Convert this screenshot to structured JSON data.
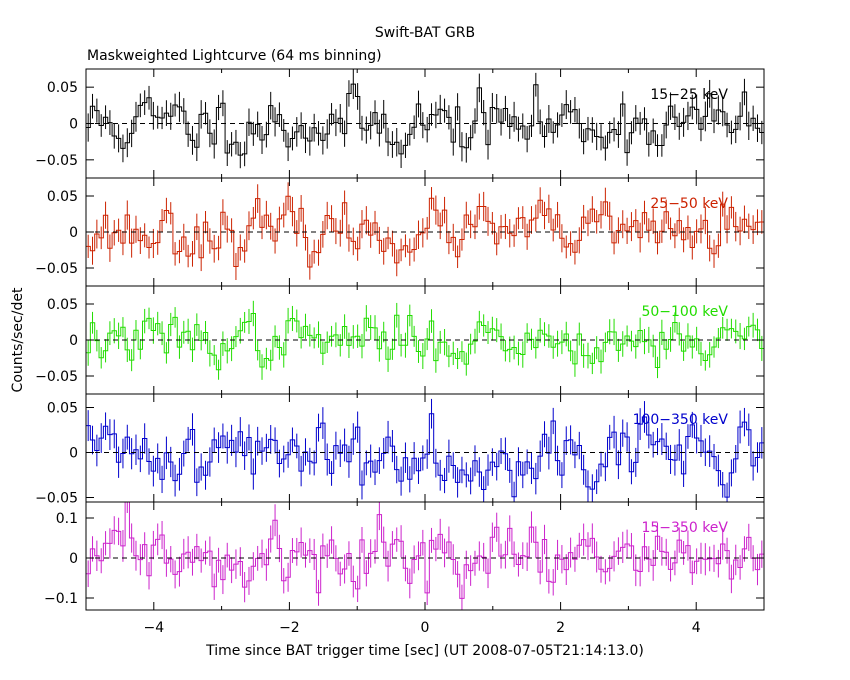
{
  "chart_data": {
    "type": "line",
    "title": "Swift-BAT GRB",
    "subtitle": "Maskweighted Lightcurve (64 ms binning)",
    "xlabel": "Time since BAT trigger time [sec] (UT 2008-07-05T21:14:13.0)",
    "ylabel": "Counts/sec/det",
    "xlim": [
      -5,
      5
    ],
    "x_ticks": [
      -4,
      -2,
      0,
      2,
      4
    ],
    "x_tick_labels": [
      "−4",
      "−2",
      "0",
      "2",
      "4"
    ],
    "bin_width_sec": 0.064,
    "panels": [
      {
        "name": "15-25 keV",
        "label": "15−25 keV",
        "color": "#000000",
        "ylim": [
          -0.075,
          0.075
        ],
        "y_ticks": [
          -0.05,
          0,
          0.05
        ],
        "y_tick_labels": [
          "−0.05",
          "0",
          "0.05"
        ],
        "amp": 0.02,
        "err": 0.018,
        "seed": 11
      },
      {
        "name": "25-50 keV",
        "label": "25−50 keV",
        "color": "#cc2200",
        "ylim": [
          -0.075,
          0.075
        ],
        "y_ticks": [
          -0.05,
          0,
          0.05
        ],
        "y_tick_labels": [
          "−0.05",
          "0",
          "0.05"
        ],
        "amp": 0.018,
        "err": 0.018,
        "seed": 23
      },
      {
        "name": "50-100 keV",
        "label": "50−100 keV",
        "color": "#22dd00",
        "ylim": [
          -0.075,
          0.075
        ],
        "y_ticks": [
          -0.05,
          0,
          0.05
        ],
        "y_tick_labels": [
          "−0.05",
          "0",
          "0.05"
        ],
        "amp": 0.016,
        "err": 0.016,
        "seed": 37
      },
      {
        "name": "100-350 keV",
        "label": "100−350 keV",
        "color": "#0000cc",
        "ylim": [
          -0.055,
          0.065
        ],
        "y_ticks": [
          -0.05,
          0,
          0.05
        ],
        "y_tick_labels": [
          "−0.05",
          "0",
          "0.05"
        ],
        "amp": 0.018,
        "err": 0.016,
        "seed": 41
      },
      {
        "name": "15-350 keV",
        "label": "15−350 keV",
        "color": "#cc22cc",
        "ylim": [
          -0.13,
          0.14
        ],
        "y_ticks": [
          -0.1,
          0,
          0.1
        ],
        "y_tick_labels": [
          "−0.1",
          "0",
          "0.1"
        ],
        "amp": 0.035,
        "err": 0.035,
        "seed": 59
      }
    ]
  }
}
